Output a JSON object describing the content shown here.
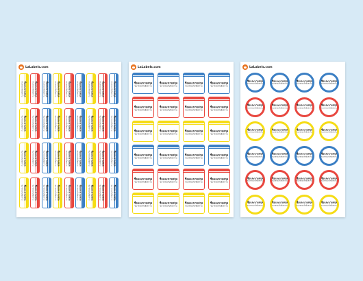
{
  "brand": {
    "name": "LaLabels.com"
  },
  "label_text": {
    "name": "ชื่อและนามสกุล",
    "subtitle": "ขนาดรองรับข้อความ"
  },
  "colors": {
    "background": "#d7eaf6",
    "blue": "#3b7fc4",
    "red": "#e8473f",
    "yellow": "#f5dc16"
  },
  "sheets": [
    {
      "style": "vertical",
      "count": 36,
      "row_pattern": [
        "yellow",
        "red",
        "blue",
        "yellow",
        "red",
        "blue",
        "yellow",
        "red",
        "blue"
      ]
    },
    {
      "style": "horizontal",
      "count": 24,
      "row_colors": [
        "blue",
        "red",
        "yellow",
        "blue",
        "red",
        "yellow"
      ]
    },
    {
      "style": "round",
      "count": 24,
      "row_colors": [
        "blue",
        "red",
        "yellow",
        "blue",
        "red",
        "yellow"
      ]
    }
  ]
}
